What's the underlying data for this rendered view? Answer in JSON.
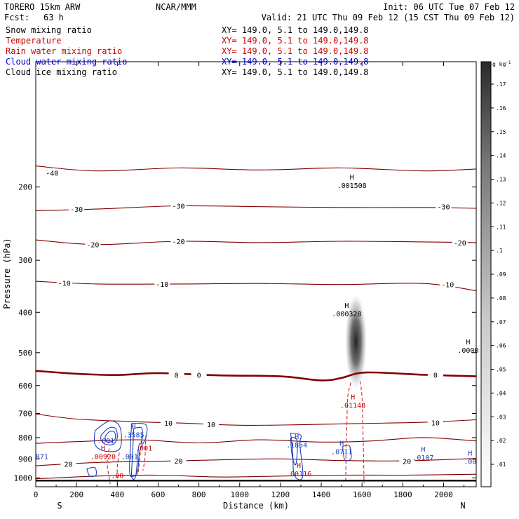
{
  "header": {
    "model": "TORERO  15km ARW",
    "org": "NCAR/MMM",
    "init": "Init: 06 UTC Tue 07 Feb 12",
    "fcst_label": "Fcst:",
    "fcst_value": "63 h",
    "valid": "Valid: 21 UTC Thu 09 Feb 12 (15 CST Thu 09 Feb 12)"
  },
  "fields": [
    {
      "name": "Snow mixing ratio",
      "color": "#000000"
    },
    {
      "name": "Temperature",
      "color": "#cc0000"
    },
    {
      "name": "Rain water mixing ratio",
      "color": "#cc0000"
    },
    {
      "name": "Cloud water mixing ratio",
      "color": "#0000cc"
    },
    {
      "name": "Cloud ice mixing ratio",
      "color": "#000000"
    }
  ],
  "xy_text": "XY= 149.0,   5.1 to 149.0,149.8",
  "xy_colors": [
    "#000000",
    "#cc0000",
    "#cc0000",
    "#0000cc",
    "#000000"
  ],
  "colorbar": {
    "unit": "g kg",
    "unit_exp": "-1",
    "ticks": [
      ".01",
      ".02",
      ".03",
      ".04",
      ".05",
      ".06",
      ".07",
      ".08",
      ".09",
      ".1",
      ".11",
      ".12",
      ".13",
      ".14",
      ".15",
      ".16",
      ".17"
    ]
  },
  "chart_data": {
    "type": "contour",
    "xlabel": "Distance (km)",
    "ylabel": "Pressure (hPa)",
    "x_ticks": [
      0,
      200,
      400,
      600,
      800,
      1000,
      1200,
      1400,
      1600,
      1800,
      2000
    ],
    "y_ticks": [
      200,
      300,
      400,
      500,
      600,
      700,
      800,
      900,
      1000
    ],
    "xlim": [
      0,
      2160
    ],
    "ylim": [
      1050,
      100
    ],
    "y_scale": "log",
    "left_end": "S",
    "right_end": "N",
    "colors": {
      "temperature": "#800000",
      "rain": "#dd2222",
      "cloud_water": "#1f3fbf",
      "ground": "#000000"
    },
    "isotherms": [
      {
        "label": "-40",
        "labels": [
          {
            "x": 80,
            "p": 185
          }
        ],
        "points": [
          [
            0,
            178
          ],
          [
            300,
            183
          ],
          [
            700,
            180
          ],
          [
            1100,
            182
          ],
          [
            1500,
            180
          ],
          [
            1900,
            183
          ],
          [
            2160,
            181
          ]
        ]
      },
      {
        "label": "-30",
        "labels": [
          {
            "x": 200,
            "p": 226
          },
          {
            "x": 700,
            "p": 222
          },
          {
            "x": 2000,
            "p": 223
          }
        ],
        "points": [
          [
            0,
            228
          ],
          [
            300,
            226
          ],
          [
            700,
            222
          ],
          [
            1100,
            223
          ],
          [
            1500,
            224
          ],
          [
            1900,
            224
          ],
          [
            2160,
            225
          ]
        ]
      },
      {
        "label": "-20",
        "labels": [
          {
            "x": 280,
            "p": 275
          },
          {
            "x": 700,
            "p": 270
          },
          {
            "x": 2080,
            "p": 272
          }
        ],
        "points": [
          [
            0,
            268
          ],
          [
            300,
            275
          ],
          [
            700,
            270
          ],
          [
            1100,
            272
          ],
          [
            1500,
            270
          ],
          [
            1900,
            271
          ],
          [
            2160,
            272
          ]
        ]
      },
      {
        "label": "-10",
        "labels": [
          {
            "x": 140,
            "p": 340
          },
          {
            "x": 620,
            "p": 342
          },
          {
            "x": 2020,
            "p": 343
          }
        ],
        "points": [
          [
            0,
            337
          ],
          [
            300,
            342
          ],
          [
            700,
            342
          ],
          [
            1100,
            341
          ],
          [
            1500,
            343
          ],
          [
            1900,
            341
          ],
          [
            2160,
            355
          ]
        ]
      },
      {
        "label": "0",
        "bold": true,
        "labels": [
          {
            "x": 690,
            "p": 565
          },
          {
            "x": 800,
            "p": 565
          },
          {
            "x": 1960,
            "p": 565
          }
        ],
        "points": [
          [
            0,
            553
          ],
          [
            200,
            562
          ],
          [
            400,
            566
          ],
          [
            600,
            560
          ],
          [
            900,
            567
          ],
          [
            1200,
            570
          ],
          [
            1400,
            583
          ],
          [
            1500,
            575
          ],
          [
            1620,
            558
          ],
          [
            1900,
            565
          ],
          [
            2160,
            570
          ]
        ]
      },
      {
        "label": "10",
        "labels": [
          {
            "x": 650,
            "p": 738
          },
          {
            "x": 860,
            "p": 744
          },
          {
            "x": 1960,
            "p": 736
          }
        ],
        "points": [
          [
            0,
            702
          ],
          [
            200,
            722
          ],
          [
            500,
            733
          ],
          [
            700,
            738
          ],
          [
            1000,
            747
          ],
          [
            1300,
            745
          ],
          [
            1600,
            740
          ],
          [
            1900,
            735
          ],
          [
            2160,
            725
          ]
        ]
      },
      {
        "label": "",
        "labels": [],
        "points": [
          [
            0,
            826
          ],
          [
            200,
            818
          ],
          [
            500,
            810
          ],
          [
            800,
            824
          ],
          [
            1100,
            810
          ],
          [
            1400,
            820
          ],
          [
            1650,
            815
          ],
          [
            1900,
            800
          ],
          [
            2160,
            815
          ]
        ]
      },
      {
        "label": "20",
        "labels": [
          {
            "x": 160,
            "p": 925
          },
          {
            "x": 700,
            "p": 910
          },
          {
            "x": 1820,
            "p": 912
          }
        ],
        "points": [
          [
            0,
            935
          ],
          [
            300,
            918
          ],
          [
            600,
            912
          ],
          [
            900,
            905
          ],
          [
            1200,
            900
          ],
          [
            1500,
            908
          ],
          [
            1800,
            910
          ],
          [
            2160,
            898
          ]
        ]
      },
      {
        "label": "",
        "labels": [],
        "points": [
          [
            0,
            1005
          ],
          [
            300,
            990
          ],
          [
            600,
            985
          ],
          [
            900,
            995
          ],
          [
            1200,
            990
          ],
          [
            1500,
            985
          ],
          [
            1800,
            985
          ],
          [
            2160,
            980
          ]
        ]
      }
    ],
    "ground_p": 1015,
    "snow_blob": {
      "x": 1570,
      "p_top": 340,
      "p_bottom": 585,
      "p_peak": 470,
      "max": 0.17
    },
    "rain_dashed": [
      [
        [
          1545,
          590
        ],
        [
          1530,
          640
        ],
        [
          1525,
          760
        ],
        [
          1522,
          820
        ],
        [
          1520,
          1030
        ]
      ],
      [
        [
          1590,
          585
        ],
        [
          1600,
          640
        ],
        [
          1605,
          780
        ],
        [
          1610,
          1030
        ]
      ],
      [
        [
          360,
          850
        ],
        [
          350,
          920
        ],
        [
          365,
          1035
        ]
      ],
      [
        [
          410,
          870
        ],
        [
          400,
          940
        ],
        [
          400,
          1035
        ]
      ],
      [
        [
          520,
          790
        ],
        [
          510,
          900
        ],
        [
          500,
          990
        ]
      ],
      [
        [
          540,
          790
        ],
        [
          535,
          900
        ],
        [
          525,
          960
        ]
      ]
    ],
    "cloud_water": [
      [
        [
          320,
          790
        ],
        [
          355,
          760
        ],
        [
          390,
          760
        ],
        [
          400,
          800
        ],
        [
          380,
          830
        ],
        [
          340,
          830
        ],
        [
          320,
          810
        ],
        [
          320,
          790
        ]
      ],
      [
        [
          340,
          795
        ],
        [
          360,
          775
        ],
        [
          385,
          775
        ],
        [
          390,
          805
        ],
        [
          365,
          820
        ],
        [
          345,
          815
        ],
        [
          340,
          795
        ]
      ],
      [
        [
          290,
          770
        ],
        [
          360,
          730
        ],
        [
          410,
          750
        ],
        [
          420,
          820
        ],
        [
          400,
          860
        ],
        [
          330,
          860
        ],
        [
          290,
          830
        ],
        [
          290,
          770
        ]
      ],
      [
        [
          480,
          760
        ],
        [
          520,
          760
        ],
        [
          520,
          820
        ],
        [
          505,
          840
        ],
        [
          490,
          990
        ],
        [
          470,
          990
        ],
        [
          475,
          880
        ],
        [
          480,
          760
        ]
      ],
      [
        [
          470,
          740
        ],
        [
          540,
          745
        ],
        [
          540,
          800
        ],
        [
          510,
          860
        ],
        [
          500,
          960
        ],
        [
          480,
          990
        ],
        [
          460,
          960
        ],
        [
          470,
          740
        ]
      ],
      [
        [
          250,
          950
        ],
        [
          290,
          945
        ],
        [
          295,
          985
        ],
        [
          265,
          990
        ],
        [
          250,
          950
        ]
      ],
      [
        [
          1250,
          780
        ],
        [
          1300,
          790
        ],
        [
          1295,
          830
        ],
        [
          1310,
          980
        ],
        [
          1290,
          1010
        ],
        [
          1265,
          970
        ],
        [
          1260,
          860
        ],
        [
          1250,
          780
        ]
      ],
      [
        [
          1250,
          800
        ],
        [
          1280,
          810
        ],
        [
          1280,
          900
        ],
        [
          1270,
          930
        ],
        [
          1255,
          870
        ],
        [
          1250,
          800
        ]
      ],
      [
        [
          1505,
          840
        ],
        [
          1535,
          835
        ],
        [
          1545,
          860
        ],
        [
          1545,
          900
        ],
        [
          1515,
          905
        ],
        [
          1505,
          840
        ]
      ]
    ],
    "annotations": [
      {
        "x": 1550,
        "p": 192,
        "h": "H",
        "value": ".001508",
        "color": "#000000"
      },
      {
        "x": 1525,
        "p": 390,
        "h": "H",
        "value": ".000328",
        "color": "#000000"
      },
      {
        "x": 2120,
        "p": 478,
        "h": "H",
        "value": ".0000",
        "color": "#000000"
      },
      {
        "x": 1555,
        "p": 648,
        "h": "H",
        "value": ".01148",
        "color": "#cc0000"
      },
      {
        "x": 345,
        "p": 788,
        "h": "",
        "value": ".001",
        "color": "#1f3fbf"
      },
      {
        "x": 480,
        "p": 763,
        "h": "H",
        "value": ".3585",
        "color": "#1f3fbf"
      },
      {
        "x": 530,
        "p": 820,
        "h": "",
        "value": ".001",
        "color": "#cc0000"
      },
      {
        "x": 460,
        "p": 860,
        "h": "",
        "value": ".001",
        "color": "#1f3fbf"
      },
      {
        "x": 330,
        "p": 860,
        "h": "H",
        "value": ".00920",
        "color": "#cc0000"
      },
      {
        "x": 400,
        "p": 955,
        "h": "",
        "value": ".00",
        "color": "#cc0000"
      },
      {
        "x": 30,
        "p": 860,
        "h": "",
        "value": "871",
        "color": "#1f3fbf"
      },
      {
        "x": 1280,
        "p": 807,
        "h": "H",
        "value": ".1854",
        "color": "#1f3fbf"
      },
      {
        "x": 1500,
        "p": 837,
        "h": "H",
        "value": ".0711",
        "color": "#1f3fbf"
      },
      {
        "x": 1290,
        "p": 945,
        "h": "H",
        "value": ".00116",
        "color": "#cc0000"
      },
      {
        "x": 1900,
        "p": 865,
        "h": "H",
        "value": ".0107",
        "color": "#1f3fbf"
      },
      {
        "x": 2130,
        "p": 884,
        "h": "H",
        "value": ".00",
        "color": "#1f3fbf"
      }
    ]
  }
}
